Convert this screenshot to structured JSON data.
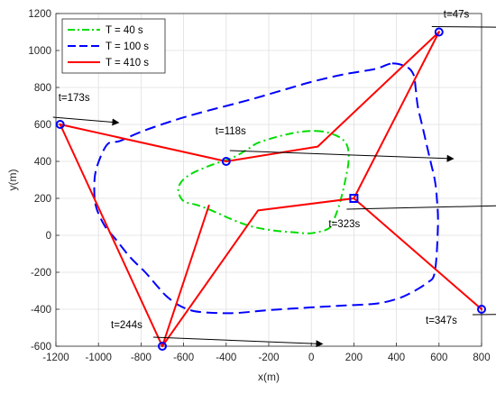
{
  "chart_data": {
    "type": "line",
    "title": "",
    "xlabel": "x(m)",
    "ylabel": "y(m)",
    "xlim": [
      -1200,
      800
    ],
    "ylim": [
      -600,
      1200
    ],
    "xticks": [
      -1200,
      -1000,
      -800,
      -600,
      -400,
      -200,
      0,
      200,
      400,
      600,
      800
    ],
    "yticks": [
      -600,
      -400,
      -200,
      0,
      200,
      400,
      600,
      800,
      1000,
      1200
    ],
    "grid": true,
    "legend_position": "top-left",
    "series": [
      {
        "name": "T = 40 s",
        "color": "#00dd00",
        "style": "dash-dot",
        "x": [
          20,
          80,
          140,
          170,
          175,
          160,
          140,
          115,
          85,
          20,
          -20,
          -70,
          -170,
          -270,
          -350,
          -420,
          -480,
          -540,
          -600,
          -625,
          -610,
          -560,
          -470,
          -370,
          -300,
          -260,
          -200,
          -120,
          -50
        ],
        "y": [
          565,
          555,
          525,
          480,
          400,
          300,
          200,
          110,
          40,
          15,
          10,
          15,
          25,
          45,
          75,
          110,
          140,
          165,
          185,
          240,
          290,
          335,
          380,
          420,
          465,
          495,
          520,
          545,
          560
        ]
      },
      {
        "name": "T = 100 s",
        "color": "#0000ff",
        "style": "dashed",
        "x": [
          380,
          450,
          480,
          490,
          500,
          520,
          540,
          560,
          580,
          590,
          595,
          580,
          540,
          470,
          400,
          300,
          150,
          0,
          -200,
          -350,
          -450,
          -550,
          -620,
          -680,
          -720,
          -780,
          -850,
          -920,
          -970,
          -1010,
          -1020,
          -1010,
          -960,
          -900,
          -800,
          -650,
          -500,
          -300,
          -150,
          0,
          150,
          300
        ],
        "y": [
          930,
          910,
          870,
          800,
          700,
          600,
          500,
          400,
          300,
          200,
          50,
          -200,
          -260,
          -310,
          -345,
          -370,
          -380,
          -390,
          -405,
          -420,
          -420,
          -410,
          -380,
          -330,
          -280,
          -200,
          -120,
          -20,
          50,
          150,
          250,
          360,
          490,
          510,
          560,
          620,
          670,
          730,
          780,
          830,
          870,
          900
        ]
      },
      {
        "name": "T = 410 s",
        "color": "#ff0000",
        "style": "solid",
        "segments": [
          {
            "x": [
              -1180,
              -400,
              30,
              600,
              200,
              800
            ],
            "y": [
              600,
              400,
              480,
              1100,
              200,
              -400
            ]
          },
          {
            "x": [
              200,
              -250,
              -700,
              -1180
            ],
            "y": [
              200,
              135,
              -600,
              600
            ]
          },
          {
            "x": [
              -700,
              -480
            ],
            "y": [
              -600,
              165
            ]
          }
        ]
      }
    ],
    "markers": [
      {
        "x": 600,
        "y": 1100,
        "label": "t=47s",
        "shape": "circle"
      },
      {
        "x": -1180,
        "y": 600,
        "label": "t=173s",
        "shape": "circle"
      },
      {
        "x": -400,
        "y": 400,
        "label": "t=118s",
        "shape": "circle"
      },
      {
        "x": 200,
        "y": 200,
        "label": "t=323s",
        "shape": "square"
      },
      {
        "x": -700,
        "y": -600,
        "label": "t=244s",
        "shape": "circle"
      },
      {
        "x": 800,
        "y": -400,
        "label": "t=347s",
        "shape": "circle"
      }
    ]
  }
}
